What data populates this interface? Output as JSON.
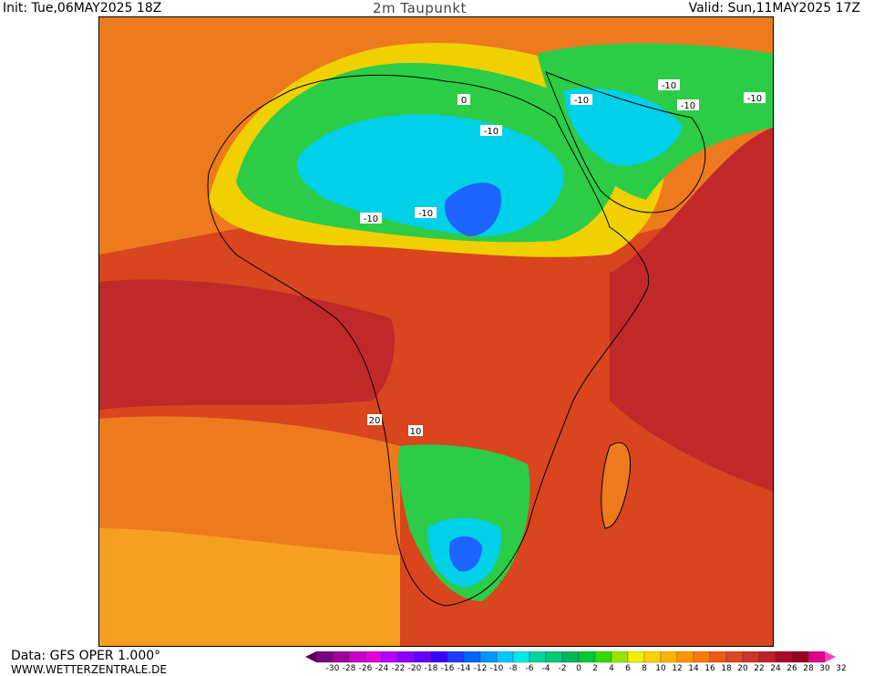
{
  "header": {
    "init": "Init: Tue,06MAY2025 18Z",
    "title": "2m Taupunkt",
    "valid": "Valid: Sun,11MAY2025 17Z"
  },
  "footer": {
    "data_source": "Data: GFS OPER 1.000°",
    "url": "WWW.WETTERZENTRALE.DE"
  },
  "colorbar": {
    "ticks": [
      "-30",
      "-28",
      "-26",
      "-24",
      "-22",
      "-20",
      "-18",
      "-16",
      "-14",
      "-12",
      "-10",
      "-8",
      "-6",
      "-4",
      "-2",
      "0",
      "2",
      "4",
      "6",
      "8",
      "10",
      "12",
      "14",
      "16",
      "18",
      "20",
      "22",
      "24",
      "26",
      "28",
      "30",
      "32"
    ],
    "colors": [
      "#5a005a",
      "#7a0080",
      "#a000a0",
      "#c800c8",
      "#e000e0",
      "#b400ff",
      "#8c00ff",
      "#6400ff",
      "#3c00ff",
      "#1e3cff",
      "#0064ff",
      "#0096ff",
      "#00c8ff",
      "#00e6e6",
      "#00d2a0",
      "#00c878",
      "#00b45a",
      "#00c832",
      "#32dc00",
      "#96e600",
      "#f0f000",
      "#ffd200",
      "#ffb400",
      "#ff9600",
      "#ff7800",
      "#f05a14",
      "#e0461e",
      "#d03228",
      "#c01e28",
      "#a80a28",
      "#96001e",
      "#e0008c",
      "#ff3cc8"
    ]
  },
  "map": {
    "contour_labels": [
      "-10",
      "-10",
      "-10",
      "-10",
      "-10",
      "-10",
      "-10",
      "0",
      "10",
      "20"
    ],
    "colors": {
      "warm_red": "#d8451e",
      "deep_red": "#c0282a",
      "orange": "#ee7a1e",
      "light_orange": "#f5a020",
      "yellow": "#f0d000",
      "green": "#2ccc46",
      "teal": "#00c8a0",
      "cyan": "#00d0e8",
      "blue": "#1e64ff"
    }
  }
}
